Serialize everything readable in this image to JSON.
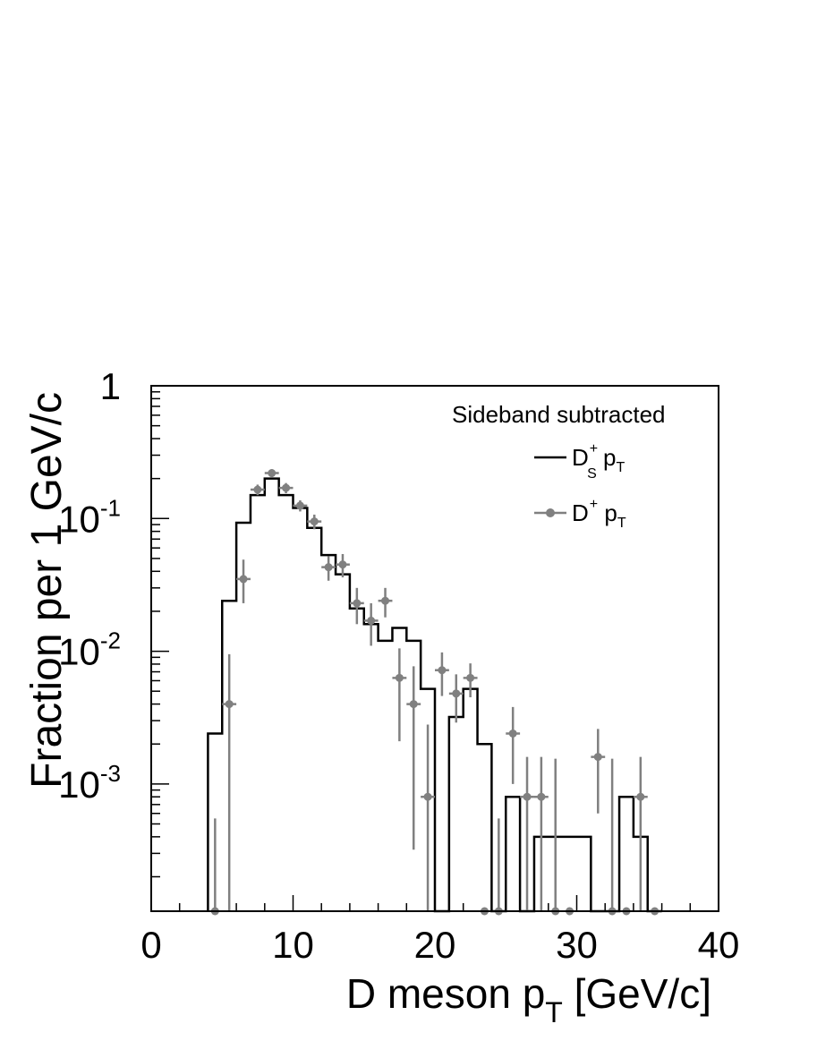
{
  "chart_data": {
    "type": "histogram",
    "xlabel_main": "D meson p",
    "xlabel_sub": "T",
    "xlabel_unit": " [GeV/c]",
    "ylabel": "Fraction per 1 GeV/c",
    "xlim": [
      0,
      40
    ],
    "ylim": [
      0.00011,
      1
    ],
    "yscale": "log",
    "grid": false,
    "x_ticks": [
      "0",
      "10",
      "20",
      "30",
      "40"
    ],
    "y_ticks": [
      {
        "value": 1,
        "base": "1",
        "exp": ""
      },
      {
        "value": 0.1,
        "base": "10",
        "exp": "-1"
      },
      {
        "value": 0.01,
        "base": "10",
        "exp": "-2"
      },
      {
        "value": 0.001,
        "base": "10",
        "exp": "-3"
      }
    ],
    "legend": {
      "title": "Sideband subtracted",
      "placement": "top-right",
      "entries": [
        {
          "main": "D",
          "sup": "+",
          "sub": "S",
          "tail": " p",
          "tail_sub": "T",
          "style": "line",
          "color": "#000000"
        },
        {
          "main": "D",
          "sup": "+",
          "sub": "",
          "tail": " p",
          "tail_sub": "T",
          "style": "marker",
          "color": "#808080"
        }
      ]
    },
    "series": [
      {
        "name": "Ds+ pT",
        "style": "step",
        "color": "#000000",
        "bins": [
          [
            4,
            5,
            0.0024
          ],
          [
            5,
            6,
            0.024
          ],
          [
            6,
            7,
            0.093
          ],
          [
            7,
            8,
            0.15
          ],
          [
            8,
            9,
            0.2
          ],
          [
            9,
            10,
            0.15
          ],
          [
            10,
            11,
            0.12
          ],
          [
            11,
            12,
            0.085
          ],
          [
            12,
            13,
            0.053
          ],
          [
            13,
            14,
            0.038
          ],
          [
            14,
            15,
            0.021
          ],
          [
            15,
            16,
            0.016
          ],
          [
            16,
            17,
            0.012
          ],
          [
            17,
            18,
            0.015
          ],
          [
            18,
            19,
            0.012
          ],
          [
            19,
            20,
            0.0052
          ],
          [
            20,
            21,
            0
          ],
          [
            21,
            22,
            0.0032
          ],
          [
            22,
            23,
            0.0052
          ],
          [
            23,
            24,
            0.002
          ],
          [
            24,
            25,
            0
          ],
          [
            25,
            26,
            0.0008
          ],
          [
            26,
            27,
            0
          ],
          [
            27,
            28,
            0.0004
          ],
          [
            28,
            29,
            0.0004
          ],
          [
            29,
            30,
            0.0004
          ],
          [
            30,
            31,
            0.0004
          ],
          [
            31,
            32,
            0
          ],
          [
            32,
            33,
            0
          ],
          [
            33,
            34,
            0.0008
          ],
          [
            34,
            35,
            0.0004
          ],
          [
            35,
            36,
            0
          ]
        ]
      },
      {
        "name": "D+ pT",
        "style": "points",
        "color": "#808080",
        "points": [
          {
            "x": 4.5,
            "y": 0,
            "lo": 0.00011,
            "hi": 0.00055
          },
          {
            "x": 5.5,
            "y": 0.004,
            "lo": 0.00011,
            "hi": 0.0095
          },
          {
            "x": 6.5,
            "y": 0.035,
            "lo": 0.023,
            "hi": 0.049
          },
          {
            "x": 7.5,
            "y": 0.165,
            "lo": 0.15,
            "hi": 0.18
          },
          {
            "x": 8.5,
            "y": 0.22,
            "lo": 0.205,
            "hi": 0.235
          },
          {
            "x": 9.5,
            "y": 0.17,
            "lo": 0.155,
            "hi": 0.185
          },
          {
            "x": 10.5,
            "y": 0.125,
            "lo": 0.113,
            "hi": 0.137
          },
          {
            "x": 11.5,
            "y": 0.095,
            "lo": 0.083,
            "hi": 0.107
          },
          {
            "x": 12.5,
            "y": 0.043,
            "lo": 0.034,
            "hi": 0.052
          },
          {
            "x": 13.5,
            "y": 0.045,
            "lo": 0.036,
            "hi": 0.054
          },
          {
            "x": 14.5,
            "y": 0.023,
            "lo": 0.016,
            "hi": 0.03
          },
          {
            "x": 15.5,
            "y": 0.017,
            "lo": 0.011,
            "hi": 0.023
          },
          {
            "x": 16.5,
            "y": 0.024,
            "lo": 0.018,
            "hi": 0.03
          },
          {
            "x": 17.5,
            "y": 0.0063,
            "lo": 0.0021,
            "hi": 0.0105
          },
          {
            "x": 18.5,
            "y": 0.004,
            "lo": 0.00032,
            "hi": 0.0077
          },
          {
            "x": 19.5,
            "y": 0.0008,
            "lo": 0.00011,
            "hi": 0.0028
          },
          {
            "x": 20.5,
            "y": 0.0072,
            "lo": 0.0046,
            "hi": 0.0098
          },
          {
            "x": 21.5,
            "y": 0.0048,
            "lo": 0.0029,
            "hi": 0.0067
          },
          {
            "x": 22.5,
            "y": 0.0063,
            "lo": 0.0045,
            "hi": 0.0081
          },
          {
            "x": 23.5,
            "y": 0,
            "lo": null,
            "hi": null
          },
          {
            "x": 24.5,
            "y": 0,
            "lo": 0.00011,
            "hi": 0.00055
          },
          {
            "x": 25.5,
            "y": 0.0024,
            "lo": 0.001,
            "hi": 0.0038
          },
          {
            "x": 26.5,
            "y": 0.0008,
            "lo": 0.00011,
            "hi": 0.0016
          },
          {
            "x": 27.5,
            "y": 0.0008,
            "lo": 0.00011,
            "hi": 0.0016
          },
          {
            "x": 28.5,
            "y": 0,
            "lo": 0.00011,
            "hi": 0.00155
          },
          {
            "x": 29.5,
            "y": 0,
            "lo": null,
            "hi": null
          },
          {
            "x": 31.5,
            "y": 0.0016,
            "lo": 0.0006,
            "hi": 0.0026
          },
          {
            "x": 32.5,
            "y": 0,
            "lo": 0.00011,
            "hi": 0.00155
          },
          {
            "x": 33.5,
            "y": 0,
            "lo": null,
            "hi": null
          },
          {
            "x": 34.5,
            "y": 0.0008,
            "lo": 0.00011,
            "hi": 0.0016
          },
          {
            "x": 35.5,
            "y": 0,
            "lo": null,
            "hi": null
          }
        ]
      }
    ]
  }
}
